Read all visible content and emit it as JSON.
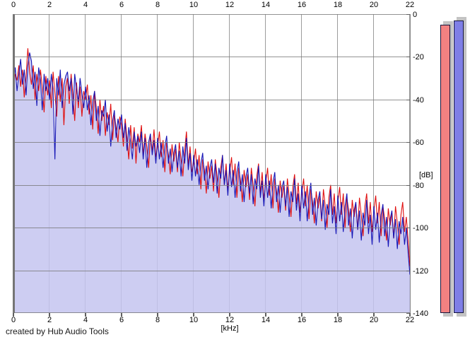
{
  "branding": {
    "credit": "created by Hub Audio Tools"
  },
  "colors": {
    "background": "#ffffff",
    "grid_vertical": "#9c9c9c",
    "grid_horizontal": "#787878",
    "plot_border": "#757575",
    "meter_shadow": "#c3c3c3",
    "meter_border": "#14143c"
  },
  "chart_data": {
    "type": "line",
    "title": "",
    "xlabel": "[kHz]",
    "ylabel": "[dB]",
    "xlim": [
      0,
      22
    ],
    "ylim": [
      -140,
      0
    ],
    "x_ticks": [
      0,
      2,
      4,
      6,
      8,
      10,
      12,
      14,
      16,
      18,
      20,
      22
    ],
    "y_ticks": [
      0,
      -20,
      -40,
      -60,
      -80,
      -100,
      -120,
      -140
    ],
    "grid": true,
    "x_step_khz": 0.1,
    "series": [
      {
        "name": "left-channel-spectrum",
        "color": "#e01010",
        "values_db": [
          -35,
          -28,
          -31,
          -24,
          -34,
          -26,
          -39,
          -29,
          -16,
          -27,
          -33,
          -24,
          -40,
          -28,
          -36,
          -26,
          -34,
          -46,
          -29,
          -38,
          -31,
          -44,
          -27,
          -37,
          -48,
          -29,
          -41,
          -30,
          -52,
          -34,
          -30,
          -42,
          -28,
          -38,
          -50,
          -32,
          -44,
          -34,
          -48,
          -36,
          -40,
          -33,
          -47,
          -38,
          -54,
          -36,
          -44,
          -56,
          -40,
          -50,
          -43,
          -57,
          -46,
          -52,
          -42,
          -59,
          -47,
          -53,
          -60,
          -48,
          -52,
          -62,
          -49,
          -58,
          -68,
          -52,
          -63,
          -53,
          -70,
          -56,
          -60,
          -52,
          -66,
          -56,
          -62,
          -72,
          -57,
          -64,
          -54,
          -67,
          -62,
          -55,
          -67,
          -59,
          -74,
          -60,
          -66,
          -75,
          -61,
          -69,
          -63,
          -74,
          -60,
          -68,
          -76,
          -64,
          -55,
          -71,
          -62,
          -74,
          -70,
          -63,
          -75,
          -66,
          -82,
          -68,
          -73,
          -84,
          -69,
          -77,
          -71,
          -83,
          -68,
          -76,
          -86,
          -72,
          -66,
          -80,
          -70,
          -82,
          -74,
          -67,
          -80,
          -70,
          -86,
          -72,
          -78,
          -88,
          -73,
          -81,
          -75,
          -87,
          -72,
          -80,
          -90,
          -76,
          -70,
          -84,
          -74,
          -87,
          -79,
          -72,
          -85,
          -75,
          -91,
          -77,
          -83,
          -93,
          -78,
          -86,
          -80,
          -92,
          -77,
          -85,
          -95,
          -81,
          -75,
          -89,
          -79,
          -93,
          -84,
          -77,
          -90,
          -80,
          -96,
          -82,
          -88,
          -98,
          -83,
          -91,
          -85,
          -97,
          -82,
          -90,
          -100,
          -86,
          -80,
          -94,
          -84,
          -98,
          -88,
          -81,
          -94,
          -84,
          -100,
          -86,
          -92,
          -102,
          -87,
          -95,
          -89,
          -101,
          -86,
          -94,
          -104,
          -90,
          -84,
          -98,
          -88,
          -102,
          -92,
          -85,
          -98,
          -88,
          -104,
          -90,
          -96,
          -106,
          -91,
          -99,
          -93,
          -105,
          -90,
          -98,
          -108,
          -94,
          -88,
          -102,
          -95,
          -106,
          -118
        ]
      },
      {
        "name": "right-channel-spectrum",
        "color": "#1616b6",
        "fill_color": "rgba(196,196,240,0.85)",
        "values_db": [
          -32,
          -25,
          -36,
          -28,
          -21,
          -33,
          -26,
          -38,
          -24,
          -18,
          -22,
          -35,
          -27,
          -43,
          -25,
          -31,
          -45,
          -28,
          -36,
          -30,
          -40,
          -28,
          -35,
          -68,
          -30,
          -38,
          -26,
          -44,
          -33,
          -29,
          -27,
          -36,
          -30,
          -47,
          -28,
          -35,
          -41,
          -30,
          -37,
          -44,
          -34,
          -45,
          -38,
          -52,
          -41,
          -36,
          -50,
          -43,
          -57,
          -45,
          -48,
          -40,
          -55,
          -47,
          -62,
          -50,
          -45,
          -58,
          -49,
          -54,
          -47,
          -58,
          -51,
          -64,
          -53,
          -60,
          -68,
          -55,
          -62,
          -57,
          -65,
          -55,
          -68,
          -58,
          -72,
          -60,
          -56,
          -66,
          -59,
          -70,
          -58,
          -68,
          -60,
          -72,
          -62,
          -57,
          -70,
          -63,
          -74,
          -65,
          -61,
          -72,
          -64,
          -76,
          -62,
          -70,
          -58,
          -73,
          -65,
          -78,
          -66,
          -76,
          -68,
          -80,
          -70,
          -65,
          -78,
          -71,
          -82,
          -72,
          -68,
          -79,
          -70,
          -84,
          -72,
          -77,
          -66,
          -80,
          -73,
          -85,
          -70,
          -81,
          -73,
          -86,
          -74,
          -69,
          -83,
          -75,
          -88,
          -76,
          -72,
          -84,
          -75,
          -89,
          -77,
          -82,
          -71,
          -86,
          -78,
          -90,
          -75,
          -86,
          -78,
          -91,
          -79,
          -74,
          -88,
          -80,
          -93,
          -81,
          -78,
          -90,
          -81,
          -95,
          -83,
          -88,
          -77,
          -92,
          -84,
          -97,
          -80,
          -91,
          -83,
          -97,
          -85,
          -79,
          -94,
          -86,
          -99,
          -87,
          -83,
          -96,
          -87,
          -101,
          -89,
          -94,
          -82,
          -98,
          -90,
          -103,
          -85,
          -97,
          -88,
          -102,
          -90,
          -84,
          -99,
          -91,
          -105,
          -92,
          -88,
          -101,
          -92,
          -106,
          -93,
          -99,
          -87,
          -103,
          -94,
          -108,
          -90,
          -101,
          -93,
          -107,
          -94,
          -89,
          -104,
          -95,
          -109,
          -96,
          -92,
          -105,
          -96,
          -110,
          -97,
          -103,
          -95,
          -108,
          -100,
          -112,
          -122
        ]
      }
    ],
    "level_meters": [
      {
        "name": "left-level-meter",
        "color": "#f38181",
        "value_db": -5
      },
      {
        "name": "right-level-meter",
        "color": "#7f7fe6",
        "value_db": -3
      }
    ]
  }
}
